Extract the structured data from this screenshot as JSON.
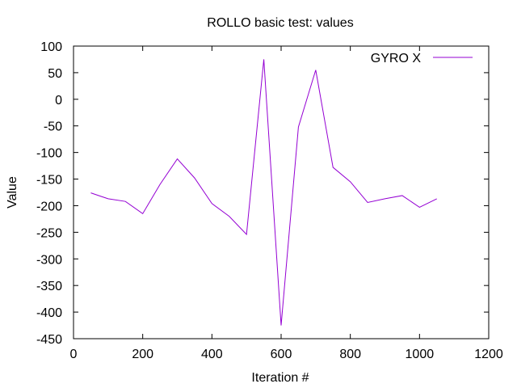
{
  "chart_data": {
    "type": "line",
    "title": "ROLLO  basic test: values",
    "xlabel": "Iteration #",
    "ylabel": "Value",
    "xlim": [
      0,
      1200
    ],
    "ylim": [
      -450,
      100
    ],
    "xticks": [
      0,
      200,
      400,
      600,
      800,
      1000,
      1200
    ],
    "yticks": [
      100,
      50,
      0,
      -50,
      -100,
      -150,
      -200,
      -250,
      -300,
      -350,
      -400,
      -450
    ],
    "grid": false,
    "legend_position": "top-right",
    "series": [
      {
        "name": "GYRO X",
        "color": "#9400d3",
        "x": [
          50,
          100,
          150,
          200,
          250,
          300,
          350,
          400,
          450,
          500,
          550,
          600,
          650,
          700,
          750,
          800,
          850,
          900,
          950,
          1000,
          1050
        ],
        "y": [
          -176,
          -187,
          -192,
          -215,
          -160,
          -112,
          -148,
          -196,
          -220,
          -254,
          75,
          -425,
          -52,
          55,
          -128,
          -155,
          -194,
          -187,
          -181,
          -203,
          -187
        ]
      }
    ]
  }
}
